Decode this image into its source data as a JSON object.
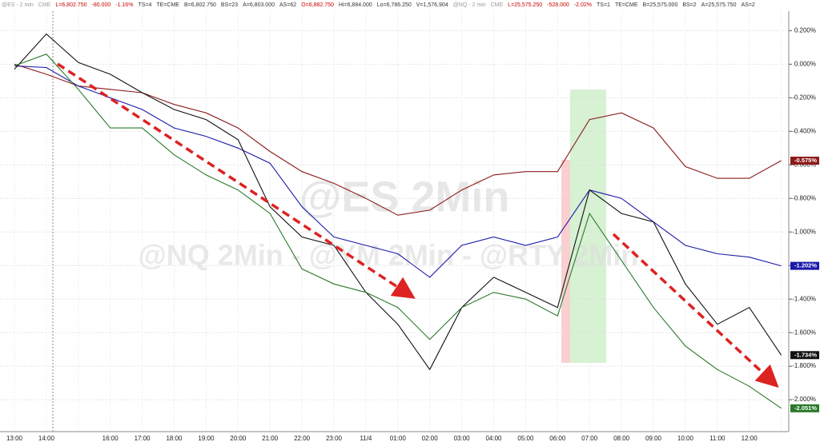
{
  "chart_data": {
    "type": "line",
    "header": [
      {
        "text": "@ES - 2 min",
        "color": "#9a9a9a"
      },
      {
        "text": "CME",
        "color": "#9a9a9a"
      },
      {
        "text": "L=6,802.750",
        "color": "#cc0000"
      },
      {
        "text": "-80.000",
        "color": "#cc0000"
      },
      {
        "text": "-1.16%",
        "color": "#cc0000"
      },
      {
        "text": "TS=4",
        "color": "#333333"
      },
      {
        "text": "TE=CME",
        "color": "#333333"
      },
      {
        "text": "B=6,802.750",
        "color": "#333333"
      },
      {
        "text": "BS=23",
        "color": "#333333"
      },
      {
        "text": "A=6,803.000",
        "color": "#333333"
      },
      {
        "text": "AS=62",
        "color": "#333333"
      },
      {
        "text": "O=6,882.750",
        "color": "#cc0000"
      },
      {
        "text": "Hi=6,884.000",
        "color": "#333333"
      },
      {
        "text": "Lo=6,786.250",
        "color": "#333333"
      },
      {
        "text": "V=1,576,904",
        "color": "#333333"
      },
      {
        "text": "@NQ - 2 min",
        "color": "#9a9a9a"
      },
      {
        "text": "CME",
        "color": "#9a9a9a"
      },
      {
        "text": "L=25,575.250",
        "color": "#cc0000"
      },
      {
        "text": "-528.000",
        "color": "#cc0000"
      },
      {
        "text": "-2.02%",
        "color": "#cc0000"
      },
      {
        "text": "TS=1",
        "color": "#333333"
      },
      {
        "text": "TE=CME",
        "color": "#333333"
      },
      {
        "text": "B=25,575.000",
        "color": "#333333"
      },
      {
        "text": "BS=2",
        "color": "#333333"
      },
      {
        "text": "A=25,575.750",
        "color": "#333333"
      },
      {
        "text": "AS=2",
        "color": "#333333"
      }
    ],
    "watermarks": [
      "@ES 2Min",
      "@NQ 2Min - @YM 2Min - @RTY 2Min"
    ],
    "categories": [
      "13:00",
      "14:00",
      null,
      "16:00",
      "17:00",
      "18:00",
      "19:00",
      "20:00",
      "21:00",
      "22:00",
      "23:00",
      "11/4",
      "01:00",
      "02:00",
      "03:00",
      "04:00",
      "05:00",
      "06:00",
      "07:00",
      "08:00",
      "09:00",
      "10:00",
      "11:00",
      "12:00",
      null
    ],
    "series": [
      {
        "color": "#8b1a1a",
        "values": [
          0,
          -0.06,
          -0.13,
          -0.15,
          -0.17,
          -0.24,
          -0.29,
          -0.38,
          -0.52,
          -0.64,
          -0.71,
          -0.8,
          -0.9,
          -0.87,
          -0.75,
          -0.66,
          -0.64,
          -0.64,
          -0.33,
          -0.29,
          -0.38,
          -0.61,
          -0.68,
          -0.68,
          -0.575
        ],
        "value_labels": [
          null,
          null,
          null,
          null,
          null,
          null,
          null,
          null,
          null,
          null,
          null,
          null,
          null,
          null,
          null,
          null,
          null,
          null,
          null,
          null,
          null,
          null,
          null,
          null,
          "-0.575%"
        ]
      },
      {
        "color": "#1a1aaa",
        "values": [
          -0.01,
          -0.02,
          -0.13,
          -0.2,
          -0.27,
          -0.38,
          -0.43,
          -0.5,
          -0.59,
          -0.85,
          -1.03,
          -1.08,
          -1.13,
          -1.27,
          -1.08,
          -1.03,
          -1.08,
          -1.03,
          -0.75,
          -0.8,
          -0.94,
          -1.08,
          -1.13,
          -1.15,
          -1.202
        ],
        "value_labels": [
          null,
          null,
          null,
          null,
          null,
          null,
          null,
          null,
          null,
          null,
          null,
          null,
          null,
          null,
          null,
          null,
          null,
          null,
          null,
          null,
          null,
          null,
          null,
          null,
          "-1.202%"
        ]
      },
      {
        "color": "#111111",
        "values": [
          -0.03,
          0.18,
          0.01,
          -0.06,
          -0.17,
          -0.27,
          -0.33,
          -0.45,
          -0.85,
          -1.03,
          -1.08,
          -1.36,
          -1.55,
          -1.82,
          -1.45,
          -1.27,
          -1.36,
          -1.45,
          -0.75,
          -0.89,
          -0.94,
          -1.31,
          -1.55,
          -1.45,
          -1.734
        ],
        "value_labels": [
          null,
          null,
          null,
          null,
          null,
          null,
          null,
          null,
          null,
          null,
          null,
          null,
          null,
          null,
          null,
          null,
          null,
          null,
          null,
          null,
          null,
          null,
          null,
          null,
          "-1.734%"
        ]
      },
      {
        "color": "#2a7a2a",
        "values": [
          -0.01,
          0.06,
          -0.15,
          -0.38,
          -0.38,
          -0.54,
          -0.66,
          -0.75,
          -0.89,
          -1.22,
          -1.31,
          -1.36,
          -1.45,
          -1.64,
          -1.45,
          -1.36,
          -1.4,
          -1.5,
          -0.89,
          -1.17,
          -1.45,
          -1.68,
          -1.82,
          -1.92,
          -2.051
        ],
        "value_labels": [
          null,
          null,
          null,
          null,
          null,
          null,
          null,
          null,
          null,
          null,
          null,
          null,
          null,
          null,
          null,
          null,
          null,
          null,
          null,
          null,
          null,
          null,
          null,
          null,
          "-2.051%"
        ]
      }
    ],
    "ylim": [
      -2.19,
      0.316
    ],
    "yticks": [
      {
        "value": 0.2,
        "label": "0.200%"
      },
      {
        "value": 0,
        "label": "0.000%"
      },
      {
        "value": -0.2,
        "label": "-0.200%"
      },
      {
        "value": -0.4,
        "label": "-0.400%"
      },
      {
        "value": -0.6,
        "label": "-0.600%"
      },
      {
        "value": -0.8,
        "label": "-0.800%"
      },
      {
        "value": -1,
        "label": "-1.000%"
      },
      {
        "value": -1.2,
        "label": "-1.200%"
      },
      {
        "value": -1.4,
        "label": "-1.400%"
      },
      {
        "value": -1.6,
        "label": "-1.600%"
      },
      {
        "value": -1.8,
        "label": "-1.800%"
      },
      {
        "value": -2,
        "label": "-2.000%"
      }
    ],
    "grid": true
  }
}
